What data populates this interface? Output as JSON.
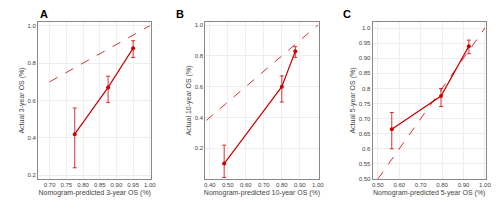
{
  "chart_data": [
    {
      "type": "line",
      "title": "A",
      "xlabel": "Nomogram-predicted 3-year OS (%)",
      "ylabel": "Actual 3-year OS (%)",
      "series": [
        {
          "x": [
            0.7,
            1.0
          ],
          "values": [
            0.7,
            1.0
          ],
          "color": "#CC0000",
          "line_style": "dashed"
        },
        {
          "x": [
            0.775,
            0.875,
            0.95
          ],
          "values": [
            0.42,
            0.67,
            0.88
          ],
          "yerr_low": [
            0.18,
            0.08,
            0.05
          ],
          "yerr_high": [
            0.14,
            0.06,
            0.04
          ],
          "color": "#CC0000",
          "line_style": "solid",
          "marker": "circle"
        }
      ],
      "xlim": [
        0.665,
        1.005
      ],
      "ylim": [
        0.18,
        1.02
      ],
      "xticks": [
        {
          "value": 0.7,
          "label": "0.70"
        },
        0.75,
        {
          "value": 0.8,
          "label": "0.80"
        },
        0.85,
        {
          "value": 0.9,
          "label": "0.90"
        },
        0.95,
        {
          "value": 1.0,
          "label": "1.00"
        }
      ],
      "yticks": [
        0.2,
        0.4,
        0.6,
        0.8,
        {
          "value": 1.0,
          "label": "1.0"
        }
      ],
      "grid": true
    },
    {
      "type": "line",
      "title": "B",
      "xlabel": "Nomogram-predicted 10-year OS (%)",
      "ylabel": "Actual 10-year OS (%)",
      "series": [
        {
          "x": [
            0.38,
            1.0
          ],
          "values": [
            0.38,
            1.0
          ],
          "color": "#CC0000",
          "line_style": "dashed"
        },
        {
          "x": [
            0.48,
            0.8,
            0.875
          ],
          "values": [
            0.1,
            0.6,
            0.83
          ],
          "yerr_low": [
            0.09,
            0.1,
            0.04
          ],
          "yerr_high": [
            0.12,
            0.07,
            0.03
          ],
          "color": "#CC0000",
          "line_style": "solid",
          "marker": "circle"
        }
      ],
      "xlim": [
        0.375,
        1.005
      ],
      "ylim": [
        0.0,
        1.02
      ],
      "xticks": [
        {
          "value": 0.4,
          "label": "0.40"
        },
        {
          "value": 0.5,
          "label": "0.50"
        },
        {
          "value": 0.6,
          "label": "0.60"
        },
        {
          "value": 0.7,
          "label": "0.70"
        },
        {
          "value": 0.8,
          "label": "0.80"
        },
        {
          "value": 0.9,
          "label": "0.90"
        },
        {
          "value": 1.0,
          "label": "1.00"
        }
      ],
      "yticks": [
        0.2,
        0.4,
        0.6,
        0.8,
        {
          "value": 1.0,
          "label": "1.0"
        }
      ],
      "grid": true
    },
    {
      "type": "line",
      "title": "C",
      "xlabel": "Nomogram-predicted 5-year OS (%)",
      "ylabel": "Actual 5-year OS (%)",
      "series": [
        {
          "x": [
            0.5,
            1.0
          ],
          "values": [
            0.5,
            1.0
          ],
          "color": "#CC0000",
          "line_style": "dashed"
        },
        {
          "x": [
            0.565,
            0.795,
            0.925
          ],
          "values": [
            0.665,
            0.775,
            0.94
          ],
          "yerr_low": [
            0.065,
            0.035,
            0.025
          ],
          "yerr_high": [
            0.055,
            0.025,
            0.02
          ],
          "color": "#CC0000",
          "line_style": "solid",
          "marker": "circle"
        }
      ],
      "xlim": [
        0.475,
        1.005
      ],
      "ylim": [
        0.5,
        1.02
      ],
      "xticks": [
        {
          "value": 0.5,
          "label": "0.50"
        },
        {
          "value": 0.6,
          "label": "0.60"
        },
        {
          "value": 0.7,
          "label": "0.70"
        },
        {
          "value": 0.8,
          "label": "0.80"
        },
        {
          "value": 0.9,
          "label": "0.90"
        },
        {
          "value": 1.0,
          "label": "1.00"
        }
      ],
      "yticks": [
        {
          "value": 0.5,
          "label": "0.50"
        },
        0.55,
        {
          "value": 0.6,
          "label": "0.6"
        },
        0.65,
        {
          "value": 0.7,
          "label": "0.70"
        },
        0.75,
        {
          "value": 0.8,
          "label": "0.8"
        },
        0.85,
        {
          "value": 0.9,
          "label": "0.90"
        },
        0.95,
        {
          "value": 1.0,
          "label": "1.0"
        }
      ],
      "grid": true
    }
  ]
}
